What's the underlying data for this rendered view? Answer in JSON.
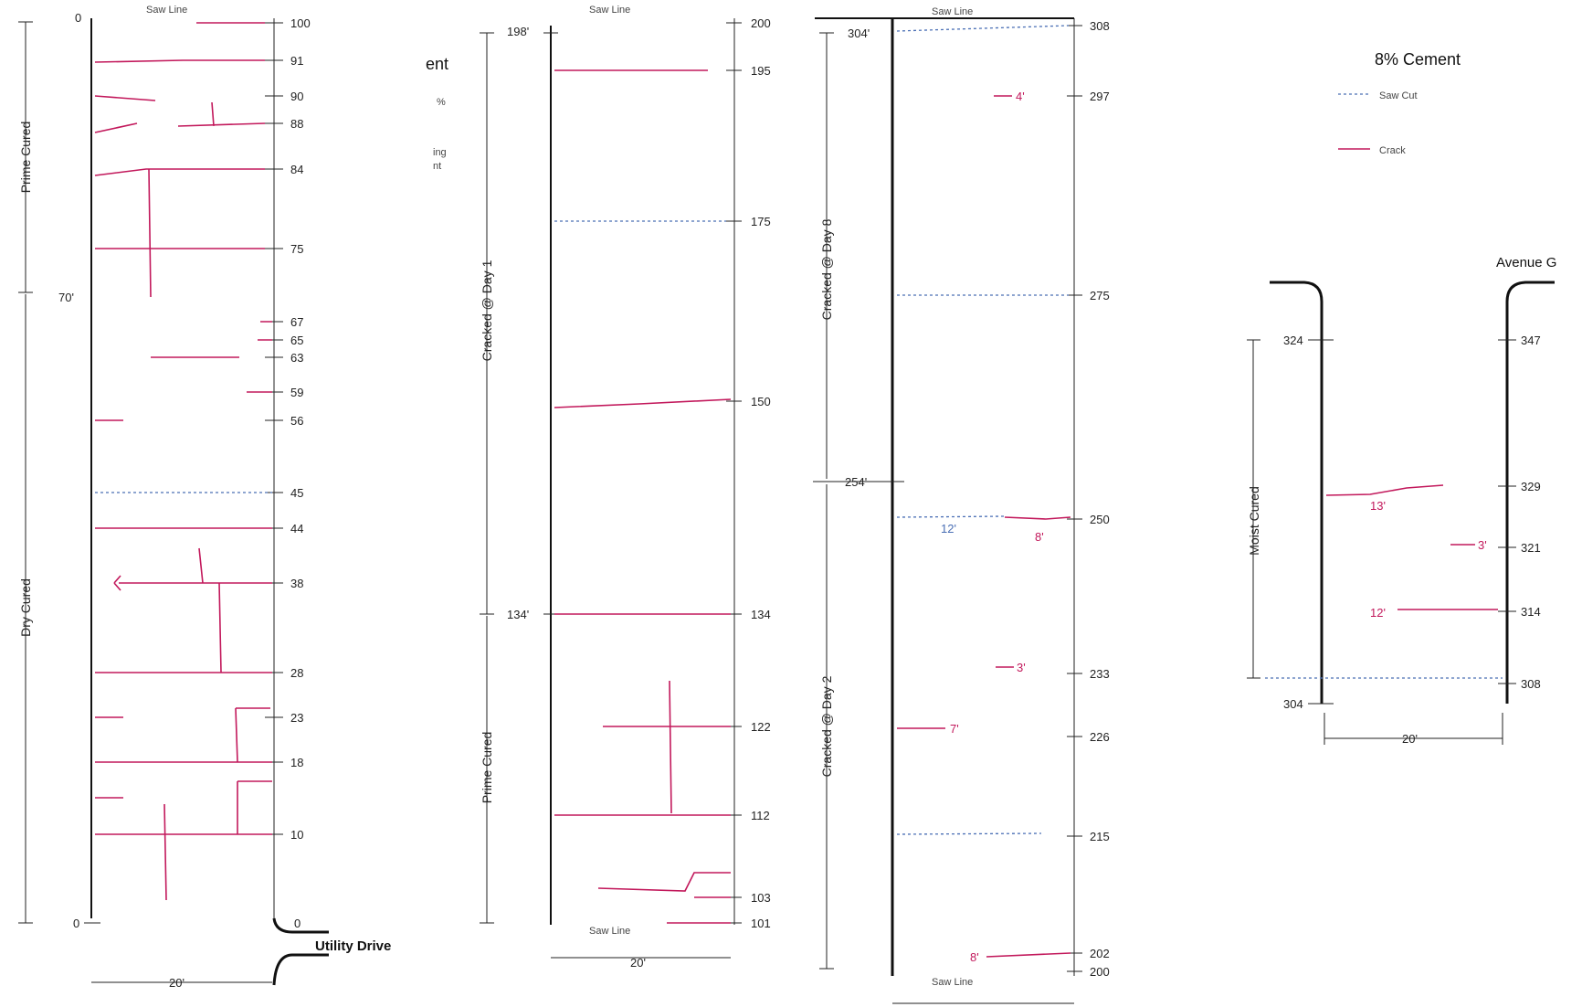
{
  "sections": [
    {
      "id": "left",
      "stations": [
        "100",
        "91",
        "90",
        "88",
        "84",
        "75",
        "67",
        "65",
        "63",
        "59",
        "56",
        "45",
        "44",
        "38",
        "28",
        "23",
        "18",
        "10",
        "0"
      ],
      "top_marker": "0",
      "zero_marker": "0",
      "mid_marker": "70'",
      "zone_labels": [
        "Prime Cured",
        "Dry Cured"
      ],
      "road_label": "Utility Drive",
      "width_label": "20'"
    },
    {
      "id": "second",
      "stations": [
        "200",
        "195",
        "175",
        "150",
        "134",
        "122",
        "112",
        "103",
        "101"
      ],
      "top_marker": "198'",
      "mid_marker": "134'",
      "zone_labels": [
        "Cracked @ Day 1",
        "Prime Cured"
      ],
      "width_label": "20'",
      "cut_off_labels": [
        "ent",
        "%",
        "ing",
        "nt"
      ]
    },
    {
      "id": "third",
      "stations": [
        "308",
        "297",
        "275",
        "250",
        "233",
        "226",
        "215",
        "202",
        "200"
      ],
      "top_marker": "304'",
      "mid_marker": "254'",
      "zone_labels": [
        "Cracked @ Day 8",
        "Cracked @ Day 2"
      ],
      "crack_labels": [
        "4'",
        "12'",
        "8'",
        "3'",
        "7'",
        "8'"
      ]
    },
    {
      "id": "right",
      "title": "8% Cement",
      "road_label": "Avenue G",
      "left_stations": [
        "324",
        "304"
      ],
      "right_stations": [
        "347",
        "329",
        "321",
        "314",
        "308"
      ],
      "zone_label": "Moist Cured",
      "width_label": "20'",
      "crack_labels": [
        "13'",
        "3'",
        "12'"
      ]
    }
  ]
}
